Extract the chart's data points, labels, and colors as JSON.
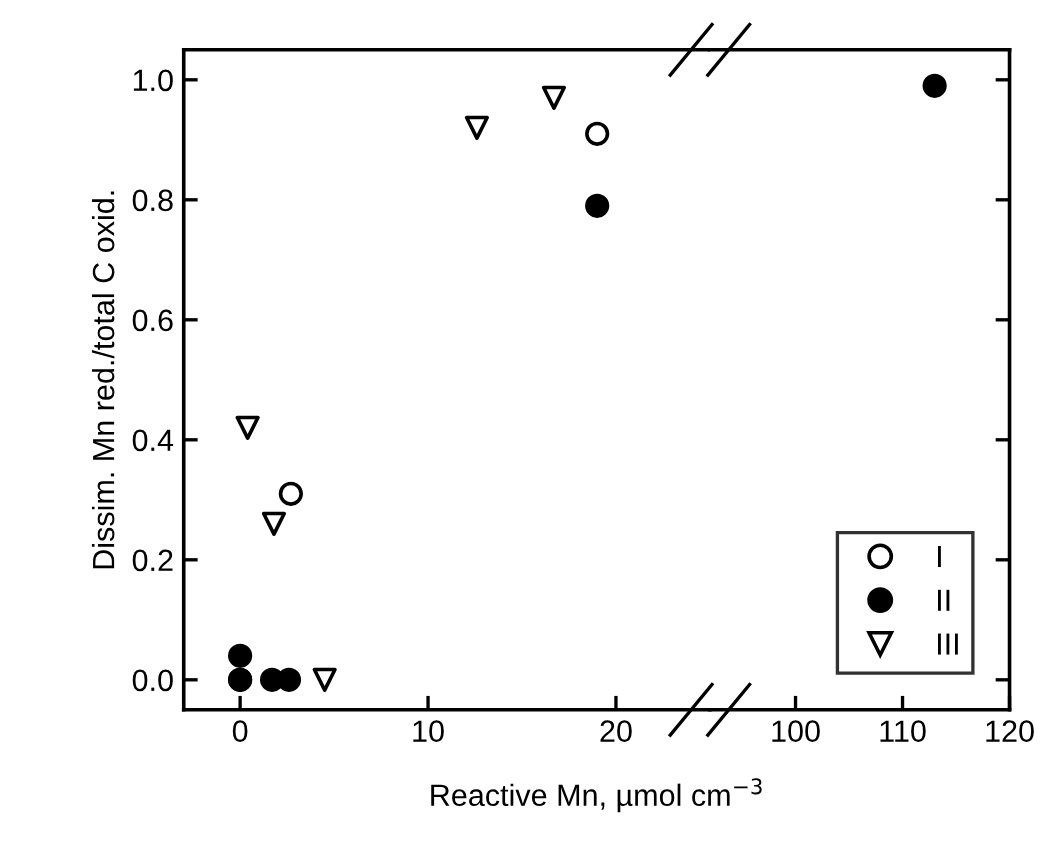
{
  "chart_data": [
    {
      "type": "scatter",
      "ylabel": "Dissim. Mn red./total C oxid.",
      "xlabel": "Reactive Mn, µmol cm$^{−3}$",
      "xlim": [
        -3,
        25
      ],
      "xticks": [
        0,
        10,
        20
      ],
      "ylim": [
        -0.05,
        1.05
      ],
      "yticks": [
        {
          "value": 0,
          "label": "0.0"
        },
        0.2,
        0.4,
        0.6,
        0.8,
        {
          "value": 1,
          "label": "1.0"
        }
      ],
      "grid": false,
      "series": [
        {
          "color": "#ffffff",
          "marker": "circle",
          "x": [
            0,
            2.7,
            19.0
          ],
          "values": [
            0.0,
            0.31,
            0.91
          ]
        },
        {
          "color": "#000000",
          "marker": "circle",
          "x": [
            0,
            1.7,
            2.6,
            19.0,
            0
          ],
          "values": [
            0.0,
            0.0,
            0.0,
            0.79,
            0.04
          ]
        },
        {
          "color": "#ffffff",
          "marker": "triangle",
          "x": [
            0.4,
            1.8,
            4.5,
            12.6,
            16.7
          ],
          "values": [
            0.42,
            0.26,
            0.0,
            0.92,
            0.97
          ]
        }
      ]
    },
    {
      "type": "scatter",
      "xlim": [
        92,
        120
      ],
      "xticks": [
        100,
        110,
        120
      ],
      "ylim": [
        -0.05,
        1.05
      ],
      "yticks": [
        {
          "value": 0,
          "label": null
        },
        {
          "value": 0.2,
          "label": null
        },
        {
          "value": 0.4,
          "label": null
        },
        {
          "value": 0.6,
          "label": null
        },
        {
          "value": 0.8,
          "label": null
        },
        {
          "value": 1,
          "label": null
        }
      ],
      "tick_labels": "x",
      "grid": false,
      "legend": "bottom right",
      "series": [
        {
          "name": "I",
          "color": "#ffffff",
          "marker": "circle"
        },
        {
          "name": "II",
          "color": "#000000",
          "marker": "circle",
          "x": [
            113.0
          ],
          "values": [
            0.99
          ]
        },
        {
          "name": "III",
          "color": "#ffffff",
          "marker": "triangle"
        }
      ]
    }
  ]
}
